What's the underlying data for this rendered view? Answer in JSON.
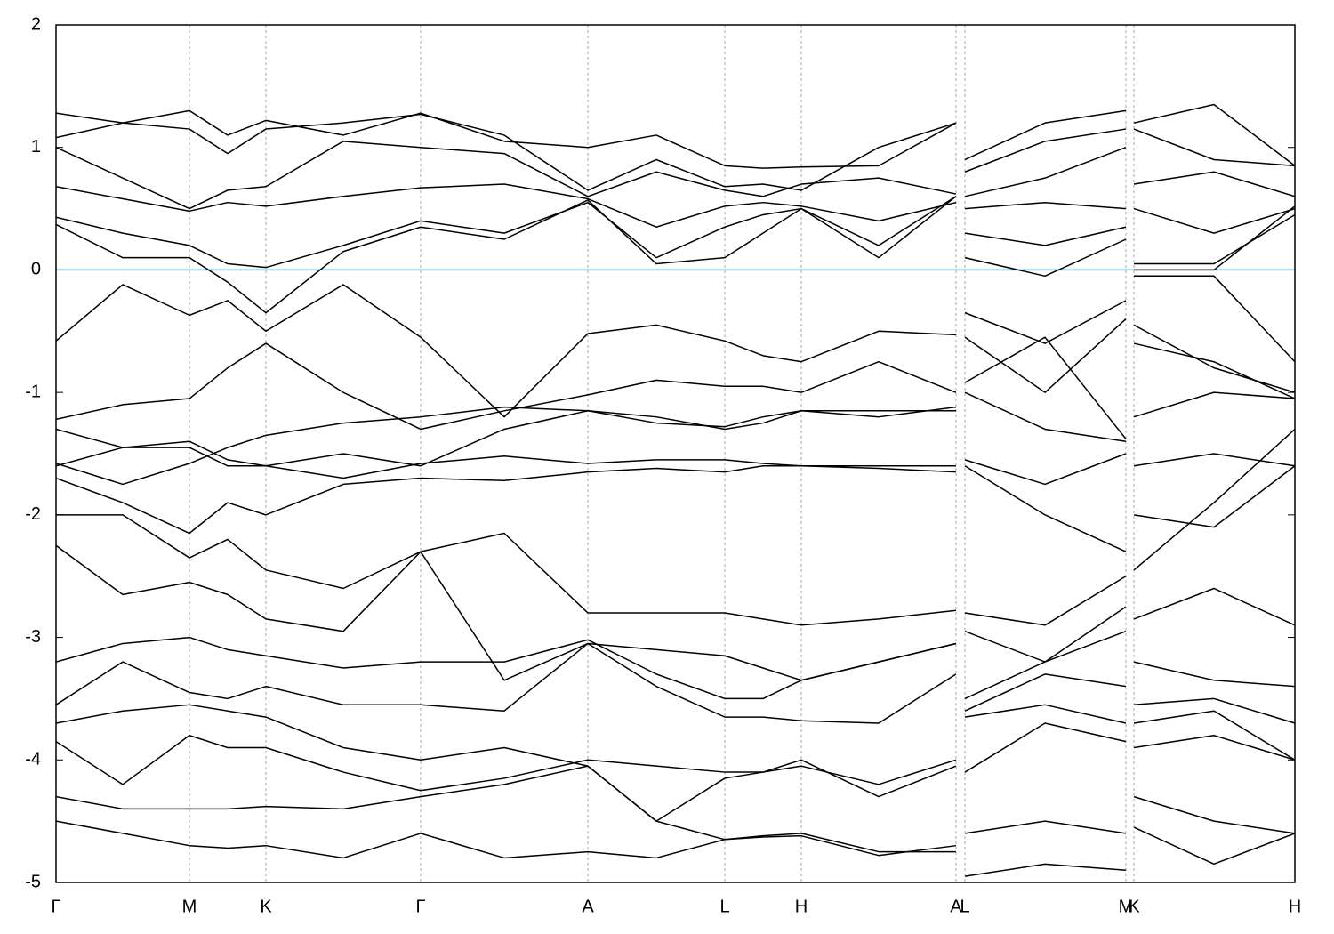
{
  "chart_data": {
    "type": "line",
    "x": [
      0,
      0.75,
      1.5,
      1.93,
      2.36,
      3.23,
      4.1,
      5.04,
      5.98,
      6.75,
      7.52,
      7.95,
      8.38,
      9.25,
      10.12,
      10.17,
      10.22,
      11.12,
      12.03,
      12.075,
      12.12,
      13.02,
      13.93
    ],
    "xlim": [
      0,
      13.93
    ],
    "ylim": [
      -5,
      2
    ],
    "yticks": [
      -5,
      -4,
      -3,
      -2,
      -1,
      0,
      1,
      2
    ],
    "xticks": [
      {
        "value": 0,
        "label": "Γ"
      },
      {
        "value": 1.5,
        "label": "M"
      },
      {
        "value": 2.36,
        "label": "K"
      },
      {
        "value": 4.1,
        "label": "Γ"
      },
      {
        "value": 5.98,
        "label": "A"
      },
      {
        "value": 7.52,
        "label": "L"
      },
      {
        "value": 8.38,
        "label": "H"
      },
      {
        "value": 10.12,
        "label": "A"
      },
      {
        "value": 10.22,
        "label": "L"
      },
      {
        "value": 12.03,
        "label": "M"
      },
      {
        "value": 12.12,
        "label": "K"
      },
      {
        "value": 13.93,
        "label": "H"
      }
    ],
    "x_grid": true,
    "line_color": "#000000",
    "fermi_level": 0,
    "fermi_color": "#5ba8c4",
    "series": [
      {
        "values": [
          1.28,
          1.2,
          1.3,
          1.1,
          1.22,
          1.1,
          1.28,
          1.05,
          1.0,
          1.1,
          0.85,
          0.83,
          0.84,
          0.85,
          1.2,
          null,
          0.9,
          1.2,
          1.3,
          null,
          1.2,
          1.35,
          0.85
        ]
      },
      {
        "values": [
          1.08,
          1.2,
          1.15,
          0.95,
          1.15,
          1.2,
          1.27,
          1.1,
          0.65,
          0.9,
          0.68,
          0.7,
          0.65,
          1.0,
          1.2,
          null,
          0.8,
          1.05,
          1.15,
          null,
          1.15,
          0.9,
          0.85
        ]
      },
      {
        "values": [
          1.0,
          0.75,
          0.5,
          0.65,
          0.68,
          1.05,
          1.0,
          0.95,
          0.6,
          0.8,
          0.65,
          0.6,
          0.7,
          0.75,
          0.62,
          null,
          0.6,
          0.75,
          1.0,
          null,
          0.7,
          0.8,
          0.6
        ]
      },
      {
        "values": [
          0.68,
          0.58,
          0.48,
          0.55,
          0.52,
          0.6,
          0.67,
          0.7,
          0.58,
          0.35,
          0.52,
          0.55,
          0.52,
          0.4,
          0.55,
          null,
          0.5,
          0.55,
          0.5,
          null,
          0.5,
          0.3,
          0.5
        ]
      },
      {
        "values": [
          0.43,
          0.3,
          0.2,
          0.05,
          0.02,
          0.2,
          0.4,
          0.3,
          0.55,
          0.1,
          0.35,
          0.45,
          0.5,
          0.2,
          0.6,
          null,
          0.3,
          0.2,
          0.35,
          null,
          0.05,
          0.05,
          0.45
        ]
      },
      {
        "values": [
          0.37,
          0.1,
          0.1,
          -0.1,
          -0.35,
          0.15,
          0.35,
          0.25,
          0.57,
          0.05,
          0.1,
          0.3,
          0.5,
          0.1,
          0.6,
          null,
          0.1,
          -0.05,
          0.25,
          null,
          0.0,
          0.0,
          0.52
        ]
      },
      {
        "values": [
          -0.58,
          -0.12,
          -0.37,
          -0.25,
          -0.5,
          -0.12,
          -0.55,
          -1.2,
          -0.52,
          -0.45,
          -0.58,
          -0.7,
          -0.75,
          -0.5,
          -0.53,
          null,
          -0.35,
          -0.6,
          -0.25,
          null,
          -0.05,
          -0.05,
          -0.75
        ]
      },
      {
        "values": [
          -1.22,
          -1.1,
          -1.05,
          -0.8,
          -0.6,
          -1.0,
          -1.3,
          -1.15,
          -1.02,
          -0.9,
          -0.95,
          -0.95,
          -1.0,
          -0.75,
          -1.0,
          null,
          -0.55,
          -1.0,
          -0.4,
          null,
          -0.45,
          -0.8,
          -1.0
        ]
      },
      {
        "values": [
          -1.3,
          -1.45,
          -1.4,
          -1.55,
          -1.6,
          -1.5,
          -1.6,
          -1.3,
          -1.15,
          -1.2,
          -1.3,
          -1.25,
          -1.15,
          -1.2,
          -1.12,
          null,
          -0.92,
          -0.55,
          -1.38,
          null,
          -0.6,
          -0.75,
          -1.05
        ]
      },
      {
        "values": [
          -1.58,
          -1.75,
          -1.58,
          -1.45,
          -1.35,
          -1.25,
          -1.2,
          -1.12,
          -1.15,
          -1.25,
          -1.28,
          -1.2,
          -1.15,
          -1.15,
          -1.15,
          null,
          -1.0,
          -1.3,
          -1.4,
          null,
          -1.2,
          -1.0,
          -1.05
        ]
      },
      {
        "values": [
          -1.6,
          -1.45,
          -1.45,
          -1.6,
          -1.6,
          -1.7,
          -1.58,
          -1.52,
          -1.58,
          -1.55,
          -1.55,
          -1.58,
          -1.6,
          -1.6,
          -1.6,
          null,
          -1.55,
          -1.75,
          -1.5,
          null,
          -1.6,
          -1.5,
          -1.6
        ]
      },
      {
        "values": [
          -1.7,
          -1.9,
          -2.15,
          -1.9,
          -2.0,
          -1.75,
          -1.7,
          -1.72,
          -1.65,
          -1.62,
          -1.65,
          -1.6,
          -1.6,
          -1.62,
          -1.65,
          null,
          -1.6,
          -2.0,
          -2.3,
          null,
          -2.0,
          -2.1,
          -1.6
        ]
      },
      {
        "values": [
          -2.0,
          -2.0,
          -2.35,
          -2.2,
          -2.45,
          -2.6,
          -2.3,
          -2.15,
          -2.8,
          -2.8,
          -2.8,
          -2.85,
          -2.9,
          -2.85,
          -2.78,
          null,
          -2.8,
          -2.9,
          -2.5,
          null,
          -2.45,
          -1.9,
          -1.3
        ]
      },
      {
        "values": [
          -2.25,
          -2.65,
          -2.55,
          -2.65,
          -2.85,
          -2.95,
          -2.3,
          -3.35,
          -3.05,
          -3.1,
          -3.15,
          -3.25,
          -3.35,
          -3.2,
          -3.05,
          null,
          -2.95,
          -3.2,
          -2.75,
          null,
          -2.85,
          -2.6,
          -2.9
        ]
      },
      {
        "values": [
          -3.2,
          -3.05,
          -3.0,
          -3.1,
          -3.15,
          -3.25,
          -3.2,
          -3.2,
          -3.02,
          -3.3,
          -3.5,
          -3.5,
          -3.35,
          -3.2,
          -3.05,
          null,
          -3.5,
          -3.2,
          -2.95,
          null,
          -3.2,
          -3.35,
          -3.4
        ]
      },
      {
        "values": [
          -3.55,
          -3.2,
          -3.45,
          -3.5,
          -3.4,
          -3.55,
          -3.55,
          -3.6,
          -3.05,
          -3.4,
          -3.65,
          -3.65,
          -3.68,
          -3.7,
          -3.3,
          null,
          -3.6,
          -3.3,
          -3.4,
          null,
          -3.55,
          -3.5,
          -3.7
        ]
      },
      {
        "values": [
          -3.7,
          -3.6,
          -3.55,
          -3.6,
          -3.65,
          -3.9,
          -4.0,
          -3.9,
          -4.05,
          -4.5,
          -4.15,
          -4.1,
          -4.0,
          -4.3,
          -4.05,
          null,
          -3.65,
          -3.55,
          -3.7,
          null,
          -3.7,
          -3.6,
          -4.0
        ]
      },
      {
        "values": [
          -3.85,
          -4.2,
          -3.8,
          -3.9,
          -3.9,
          -4.1,
          -4.25,
          -4.15,
          -4.0,
          -4.05,
          -4.1,
          -4.1,
          -4.05,
          -4.2,
          -4.0,
          null,
          -4.1,
          -3.7,
          -3.85,
          null,
          -3.9,
          -3.8,
          -4.0
        ]
      },
      {
        "values": [
          -4.3,
          -4.4,
          -4.4,
          -4.4,
          -4.38,
          -4.4,
          -4.3,
          -4.2,
          -4.05,
          -4.5,
          -4.65,
          -4.62,
          -4.6,
          -4.75,
          -4.75,
          null,
          -4.6,
          -4.5,
          -4.6,
          null,
          -4.3,
          -4.5,
          -4.6
        ]
      },
      {
        "values": [
          -4.5,
          -4.6,
          -4.7,
          -4.72,
          -4.7,
          -4.8,
          -4.6,
          -4.8,
          -4.75,
          -4.8,
          -4.65,
          -4.63,
          -4.62,
          -4.78,
          -4.7,
          null,
          -4.95,
          -4.85,
          -4.9,
          null,
          -4.55,
          -4.85,
          -4.6
        ]
      }
    ]
  }
}
